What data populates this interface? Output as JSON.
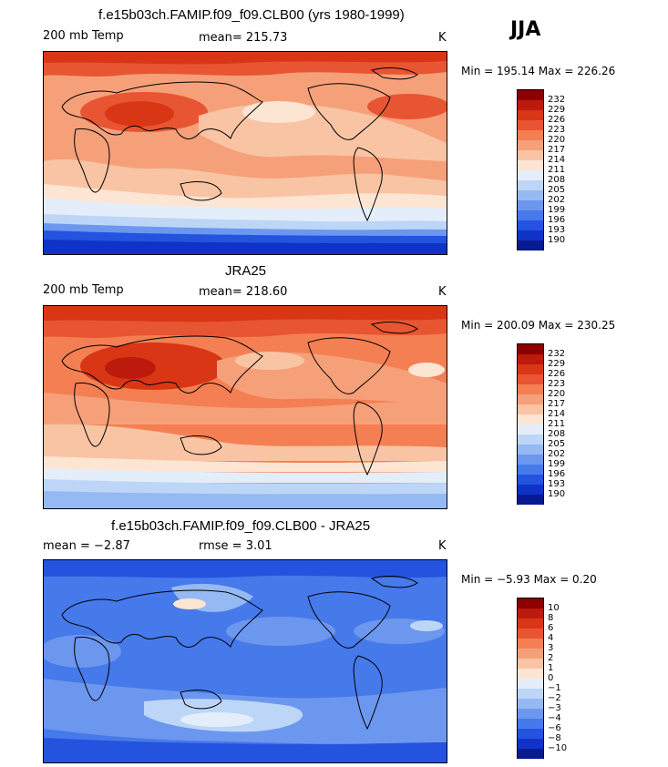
{
  "season": "JJA",
  "panels": [
    {
      "title": "f.e15b03ch.FAMIP.f09_f09.CLB00 (yrs 1980-1999)",
      "left_label": "200 mb Temp",
      "mid_label": "mean=  215.73",
      "units": "K",
      "minmax": "Min = 195.14 Max = 226.26",
      "colorbar_labels": [
        "232",
        "229",
        "226",
        "223",
        "220",
        "217",
        "214",
        "211",
        "208",
        "205",
        "202",
        "199",
        "196",
        "193",
        "190"
      ]
    },
    {
      "title": "JRA25",
      "left_label": "200 mb Temp",
      "mid_label": "mean=  218.60",
      "units": "K",
      "minmax": "Min = 200.09 Max = 230.25",
      "colorbar_labels": [
        "232",
        "229",
        "226",
        "223",
        "220",
        "217",
        "214",
        "211",
        "208",
        "205",
        "202",
        "199",
        "196",
        "193",
        "190"
      ]
    },
    {
      "title": "f.e15b03ch.FAMIP.f09_f09.CLB00 - JRA25",
      "left_label": "mean =   −2.87",
      "mid_label": "rmse =     3.01",
      "units": "K",
      "minmax": "Min =  −5.93 Max =    0.20",
      "colorbar_labels": [
        "10",
        "8",
        "6",
        "4",
        "3",
        "2",
        "1",
        "0",
        "−1",
        "−2",
        "−3",
        "−4",
        "−6",
        "−8",
        "−10"
      ]
    }
  ],
  "chart_data": {
    "type": "heatmap",
    "description_levels": "filled contour maps of 200 mb temperature",
    "colors": [
      "#8b0000",
      "#bb1a0c",
      "#d93616",
      "#e85532",
      "#f47f52",
      "#f6a07a",
      "#f9c4a4",
      "#fde5d4",
      "#e3eefa",
      "#bdd6f7",
      "#95b9f2",
      "#6c97ee",
      "#4679ea",
      "#2353df",
      "#0e33c6",
      "#071a8e"
    ]
  }
}
